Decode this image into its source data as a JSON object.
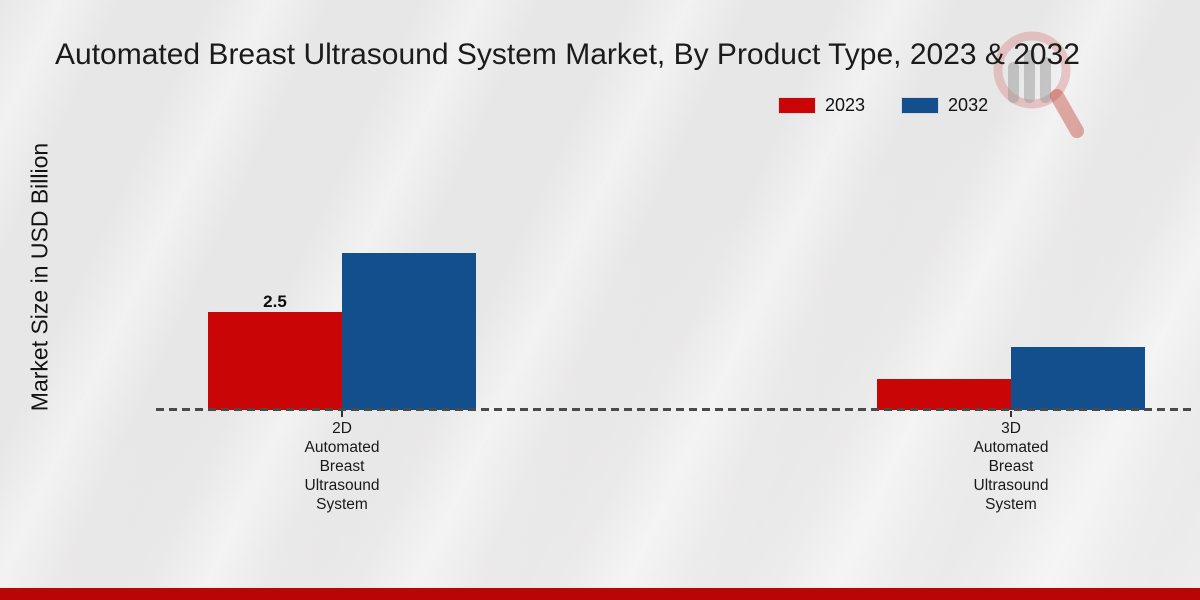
{
  "title": "Automated Breast Ultrasound System Market, By Product Type, 2023 & 2032",
  "ylabel": "Market Size in USD Billion",
  "legend": {
    "items": [
      {
        "label": "2023",
        "color": "#c90605"
      },
      {
        "label": "2032",
        "color": "#134f8d"
      }
    ]
  },
  "watermark": {
    "icon": "magnifier-bar-chart-logo"
  },
  "footer": {
    "bar_color": "#b90504"
  },
  "chart_data": {
    "type": "bar",
    "title": "Automated Breast Ultrasound System Market, By Product Type, 2023 & 2032",
    "xlabel": "",
    "ylabel": "Market Size in USD Billion",
    "categories": [
      "2D Automated Breast Ultrasound System",
      "3D Automated Breast Ultrasound System"
    ],
    "categories_display": [
      "2D\nAutomated\nBreast\nUltrasound\nSystem",
      "3D\nAutomated\nBreast\nUltrasound\nSystem"
    ],
    "series": [
      {
        "name": "2023",
        "color": "#c90605",
        "values": [
          2.5,
          0.8
        ]
      },
      {
        "name": "2032",
        "color": "#134f8d",
        "values": [
          4.0,
          1.6
        ]
      }
    ],
    "bar_labels": [
      {
        "series": 0,
        "category": 0,
        "text": "2.5"
      }
    ],
    "ylim": [
      0,
      4.5
    ],
    "baseline_value": 0,
    "grid": false,
    "legend_position": "top-right",
    "baseline_style": "dashed"
  }
}
